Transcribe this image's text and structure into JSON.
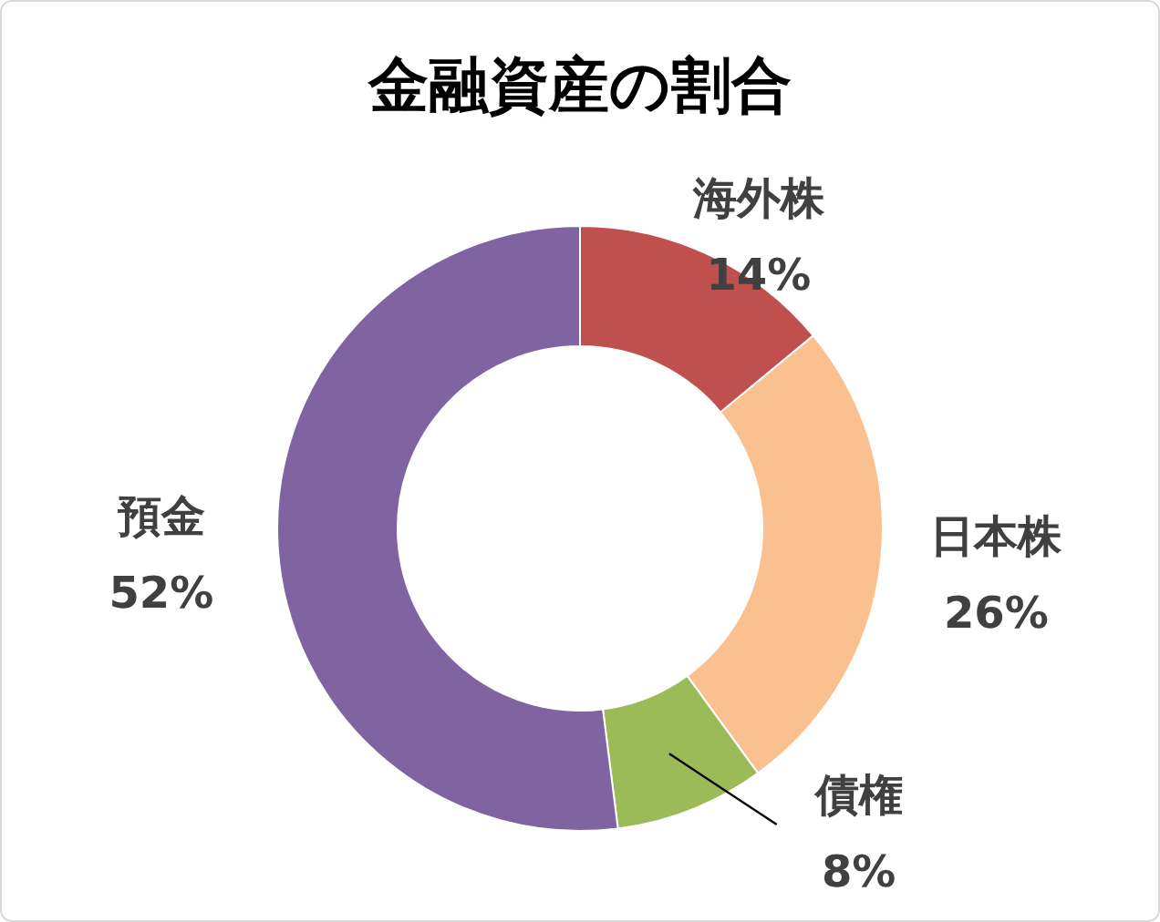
{
  "chart_data": {
    "type": "donut",
    "title": "金融資産の割合",
    "categories": [
      "海外株",
      "日本株",
      "債権",
      "預金"
    ],
    "values": [
      14,
      26,
      8,
      52
    ],
    "colors": [
      "#c0504d",
      "#fac090",
      "#9bbb59",
      "#8064a2"
    ],
    "value_labels": [
      "14%",
      "26%",
      "8%",
      "52%"
    ]
  }
}
